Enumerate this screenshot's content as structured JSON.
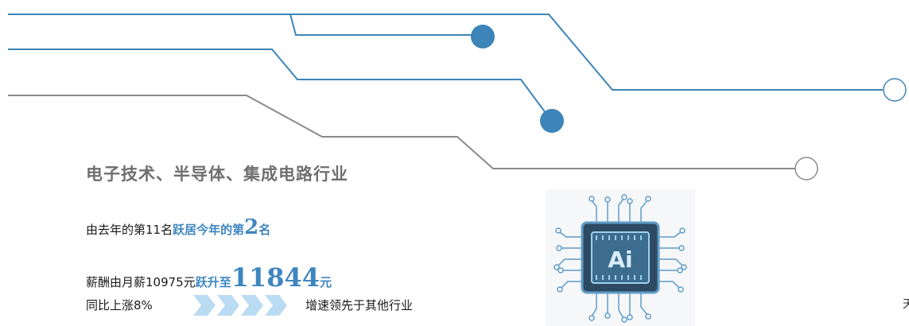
{
  "colors": {
    "line_blue": "#3d84b8",
    "line_gray": "#8a8a8a",
    "highlight_blue": "#3e86c0",
    "title_gray": "#6f6f6f",
    "arrow_light_blue": "#b9dcf3"
  },
  "title": "电子技术、半导体、集成电路行业",
  "rank": {
    "prefix": "由去年的第11名",
    "jump": "跃居今年的第",
    "rank_number": "2",
    "suffix": "名"
  },
  "salary": {
    "prefix": "薪酬由月薪10975元",
    "jump": "跃升至",
    "amount": "11844",
    "unit": "元"
  },
  "growth": {
    "text": "同比上涨8%",
    "lead": "增速领先于其他行业"
  },
  "icons": {
    "chip": "ai-chip-icon",
    "arrows": "chevron-arrows-icon",
    "nodes": "circuit-node-icon"
  },
  "chip_label": "Ai",
  "edge_glyph": "天"
}
